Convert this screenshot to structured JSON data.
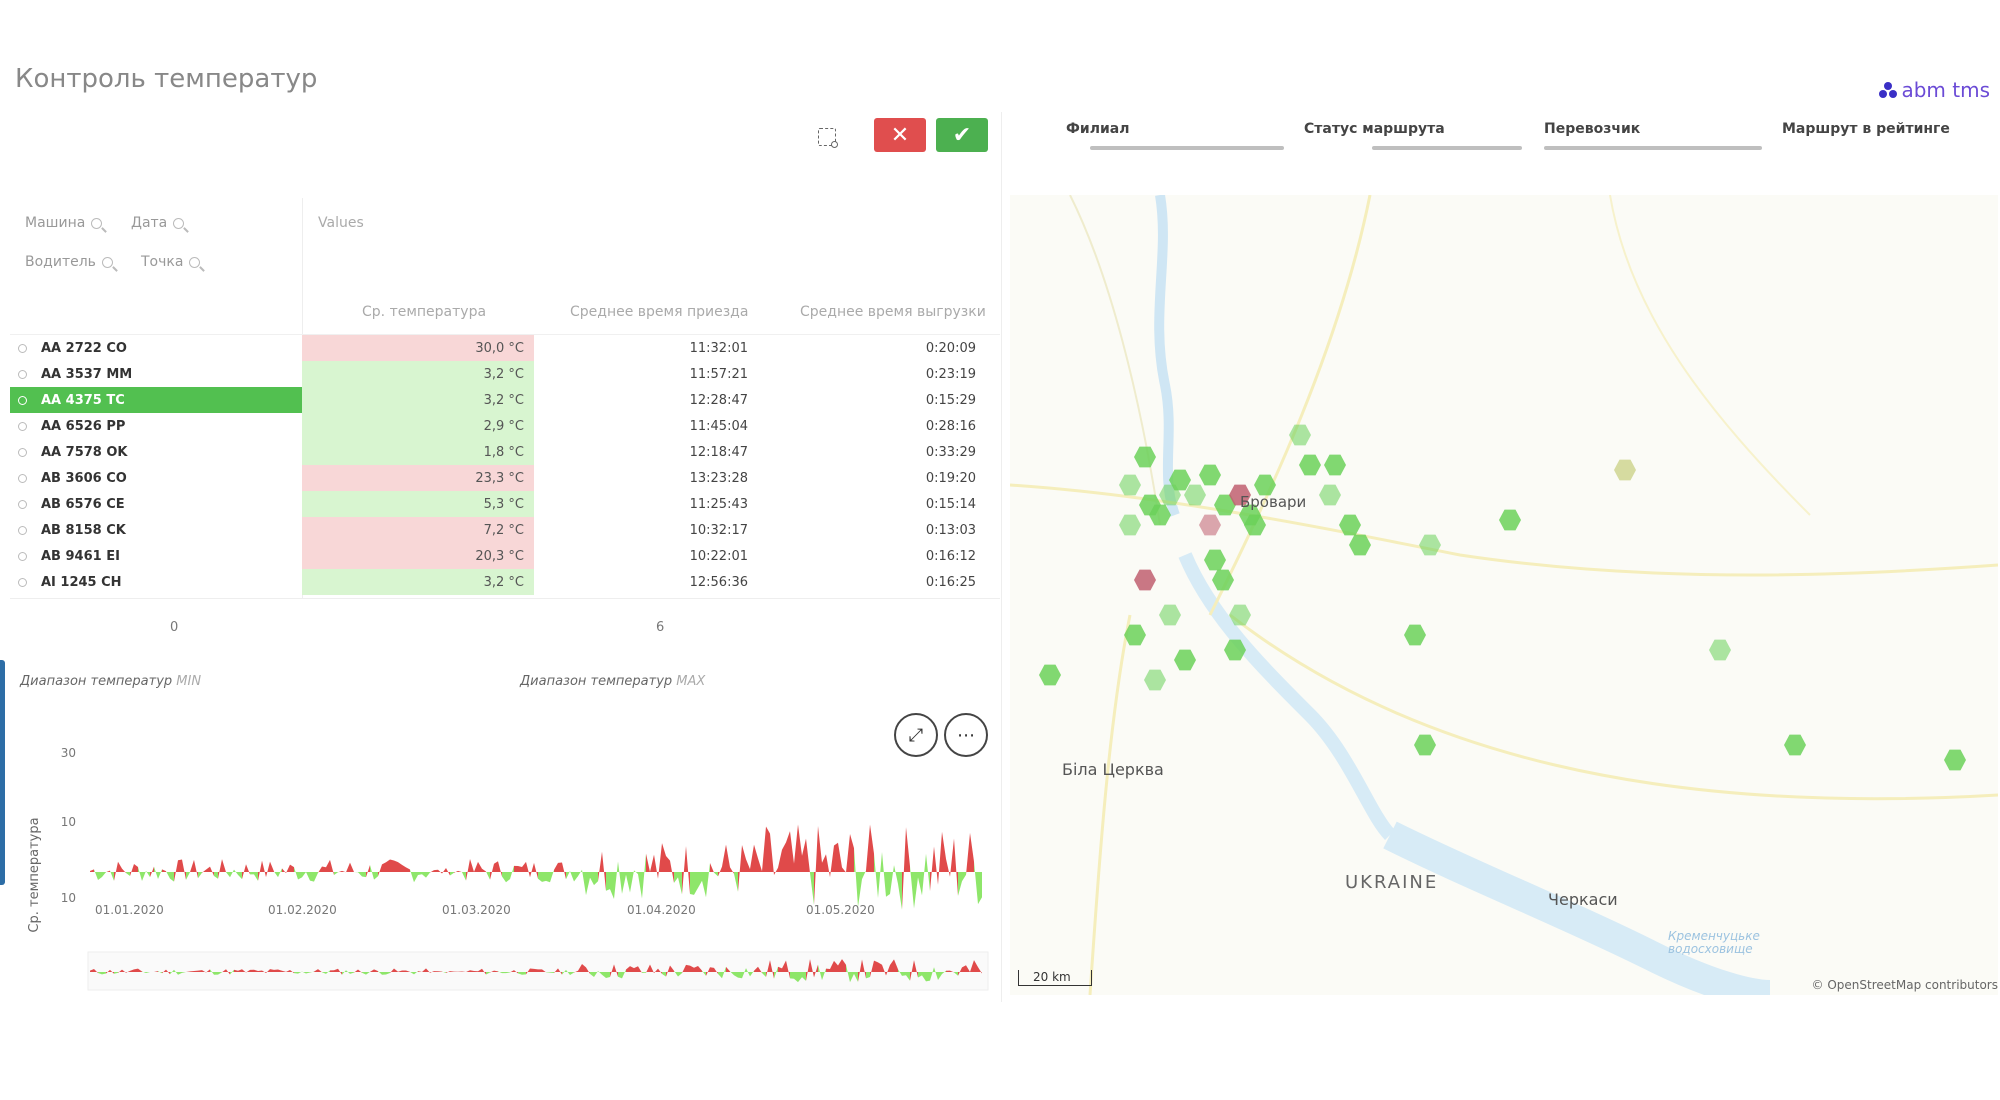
{
  "header": {
    "title": "Контроль температур",
    "brand": "abm tms"
  },
  "toolbar": {
    "cancel_icon": "✕",
    "confirm_icon": "✔"
  },
  "fields": {
    "machine": "Машина",
    "date": "Дата",
    "driver": "Водитель",
    "point": "Точка"
  },
  "table": {
    "values_label": "Values",
    "columns": [
      "Ср. температура",
      "Среднее время приезда",
      "Среднее время выгрузки"
    ],
    "rows": [
      {
        "name": "AA 2722 CO",
        "temp": "30,0 °C",
        "arrival": "11:32:01",
        "unload": "0:20:09",
        "status": "hot"
      },
      {
        "name": "AA 3537 MM",
        "temp": "3,2 °C",
        "arrival": "11:57:21",
        "unload": "0:23:19",
        "status": "cold"
      },
      {
        "name": "AA 4375 TC",
        "temp": "3,2 °C",
        "arrival": "12:28:47",
        "unload": "0:15:29",
        "status": "cold"
      },
      {
        "name": "AA 6526 PP",
        "temp": "2,9 °C",
        "arrival": "11:45:04",
        "unload": "0:28:16",
        "status": "cold"
      },
      {
        "name": "AA 7578 OK",
        "temp": "1,8 °C",
        "arrival": "12:18:47",
        "unload": "0:33:29",
        "status": "cold"
      },
      {
        "name": "AB 3606 CO",
        "temp": "23,3 °C",
        "arrival": "13:23:28",
        "unload": "0:19:20",
        "status": "hot"
      },
      {
        "name": "AB 6576 CE",
        "temp": "5,3 °C",
        "arrival": "11:25:43",
        "unload": "0:15:14",
        "status": "cold"
      },
      {
        "name": "AB 8158 CK",
        "temp": "7,2 °C",
        "arrival": "10:32:17",
        "unload": "0:13:03",
        "status": "hot"
      },
      {
        "name": "AB 9461 EI",
        "temp": "20,3 °C",
        "arrival": "10:22:01",
        "unload": "0:16:12",
        "status": "hot"
      },
      {
        "name": "AI 1245 CH",
        "temp": "3,2 °C",
        "arrival": "12:56:36",
        "unload": "0:16:25",
        "status": "cold"
      }
    ],
    "selected_row": "AA 4375 TC",
    "scale_min": "0",
    "scale_mid": "6"
  },
  "chart_legend": {
    "min_label": "Диапазон температур",
    "min_suffix": "MIN",
    "max_label": "Диапазон температур",
    "max_suffix": "MAX"
  },
  "chart_data": {
    "type": "area",
    "ylabel": "Ср. температура",
    "y_ticks": [
      "30",
      "10",
      "10"
    ],
    "x_ticks": [
      "01.01.2020",
      "01.02.2020",
      "01.03.2020",
      "01.04.2020",
      "01.05.2020"
    ],
    "colors": {
      "above": "#e04a4a",
      "below": "#8ee66a"
    }
  },
  "filters": [
    "Филиал",
    "Статус маршрута",
    "Перевозчик",
    "Маршрут в рейтинге"
  ],
  "map": {
    "labels": {
      "city_kyiv": "Бровари",
      "bila": "Біла Церква",
      "ukraine": "UKRAINE",
      "cherkasy": "Черкаси",
      "reservoir": "Кременчуцьке водосховище"
    },
    "scale": "20 km",
    "attribution": "© OpenStreetMap contributors"
  }
}
